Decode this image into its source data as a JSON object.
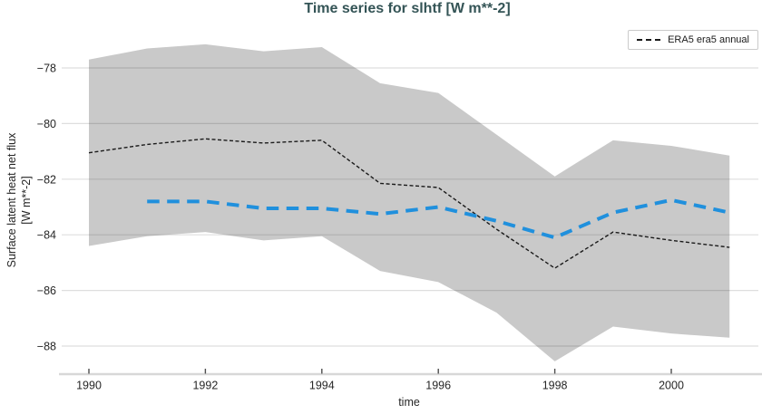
{
  "figure": {
    "title": "Time series for slhtf [W m**-2]",
    "title_color": "#345456",
    "background_color": "#ffffff"
  },
  "axes": {
    "xlabel": "time",
    "ylabel_line1": "Surface latent heat net flux",
    "ylabel_line2": "[W m**-2]",
    "xticks": [
      {
        "value": 1990,
        "label": "1990"
      },
      {
        "value": 1992,
        "label": "1992"
      },
      {
        "value": 1994,
        "label": "1994"
      },
      {
        "value": 1996,
        "label": "1996"
      },
      {
        "value": 1998,
        "label": "1998"
      },
      {
        "value": 2000,
        "label": "2000"
      }
    ],
    "yticks": [
      {
        "value": -78,
        "label": "−78"
      },
      {
        "value": -80,
        "label": "−80"
      },
      {
        "value": -82,
        "label": "−82"
      },
      {
        "value": -84,
        "label": "−84"
      },
      {
        "value": -86,
        "label": "−86"
      },
      {
        "value": -88,
        "label": "−88"
      }
    ],
    "grid": "horizontal-only",
    "gridline_color": "#d2d2d2",
    "axis_line_color": "#d8d8d8",
    "tick_mark_color": "#4d4d4d",
    "tick_label_color": "#262626"
  },
  "legend": {
    "position": "top-right",
    "border_color": "#cbcbcb",
    "entries": [
      {
        "label": "ERA5 era5 annual",
        "line_color": "#1a1a1a",
        "line_style": "dashed"
      }
    ]
  },
  "chart_data": {
    "type": "line",
    "title": "Time series for slhtf [W m**-2]",
    "xlabel": "time",
    "ylabel": "Surface latent heat net flux [W m**-2]",
    "xlim": [
      1989.5,
      2001.55
    ],
    "ylim": [
      -89.0,
      -76.5
    ],
    "legend_position": "top-right",
    "series": [
      {
        "type": "band",
        "name": "uncertainty-envelope",
        "color": "#c9c9c9",
        "x": [
          1990,
          1991,
          1992,
          1993,
          1994,
          1995,
          1996,
          1997,
          1998,
          1999,
          2000,
          2001
        ],
        "upper": [
          -77.7,
          -77.3,
          -77.15,
          -77.4,
          -77.25,
          -78.55,
          -78.9,
          -80.4,
          -81.9,
          -80.6,
          -80.8,
          -81.15
        ],
        "lower": [
          -84.4,
          -84.05,
          -83.9,
          -84.2,
          -84.05,
          -85.3,
          -85.7,
          -86.8,
          -88.55,
          -87.3,
          -87.55,
          -87.7
        ]
      },
      {
        "type": "line",
        "name": "ERA5 era5 annual",
        "color": "#1a1a1a",
        "width": 1.4,
        "dash": "4 2.5",
        "data_name": "era5-annual-line",
        "x": [
          1990,
          1991,
          1992,
          1993,
          1994,
          1995,
          1996,
          1997,
          1998,
          1999,
          2000,
          2001
        ],
        "values": [
          -81.05,
          -80.75,
          -80.55,
          -80.7,
          -80.6,
          -82.15,
          -82.3,
          -83.8,
          -85.2,
          -83.9,
          -84.2,
          -84.45
        ]
      },
      {
        "type": "line",
        "name": "blue-dashed-unlabeled",
        "color": "#2090dd",
        "width": 4,
        "dash": "13.5 8.5",
        "data_name": "blue-dashed-line",
        "x": [
          1991,
          1992,
          1993,
          1994,
          1995,
          1996,
          1997,
          1998,
          1999,
          2000,
          2001
        ],
        "values": [
          -82.8,
          -82.8,
          -83.05,
          -83.05,
          -83.25,
          -83.0,
          -83.5,
          -84.1,
          -83.2,
          -82.75,
          -83.2
        ]
      }
    ]
  }
}
